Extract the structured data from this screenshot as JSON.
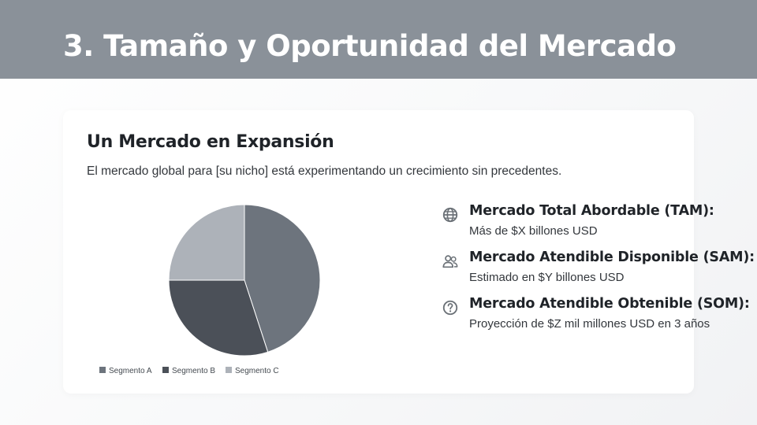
{
  "page": {
    "title": "3. Tamaño y Oportunidad del Mercado"
  },
  "card": {
    "heading": "Un Mercado en Expansión",
    "description": "El mercado global para [su nicho] está experimentando un crecimiento sin precedentes."
  },
  "metrics": [
    {
      "icon": "globe-icon",
      "label": "Mercado Total Abordable (TAM):",
      "value": "Más de $X billones USD"
    },
    {
      "icon": "users-icon",
      "label": "Mercado Atendible Disponible (SAM):",
      "value": "Estimado en $Y billones USD"
    },
    {
      "icon": "question-circle-icon",
      "label": "Mercado Atendible Obtenible (SOM):",
      "value": "Proyección de $Z mil millones USD en 3 años"
    }
  ],
  "colors": {
    "header_bg": "#8a9199",
    "icon": "#6b7177"
  },
  "chart_data": {
    "type": "pie",
    "categories": [
      "Segmento A",
      "Segmento B",
      "Segmento C"
    ],
    "values": [
      45,
      30,
      25
    ],
    "colors": [
      "#6d747d",
      "#4b5058",
      "#adb2b9"
    ],
    "legend_position": "bottom"
  }
}
